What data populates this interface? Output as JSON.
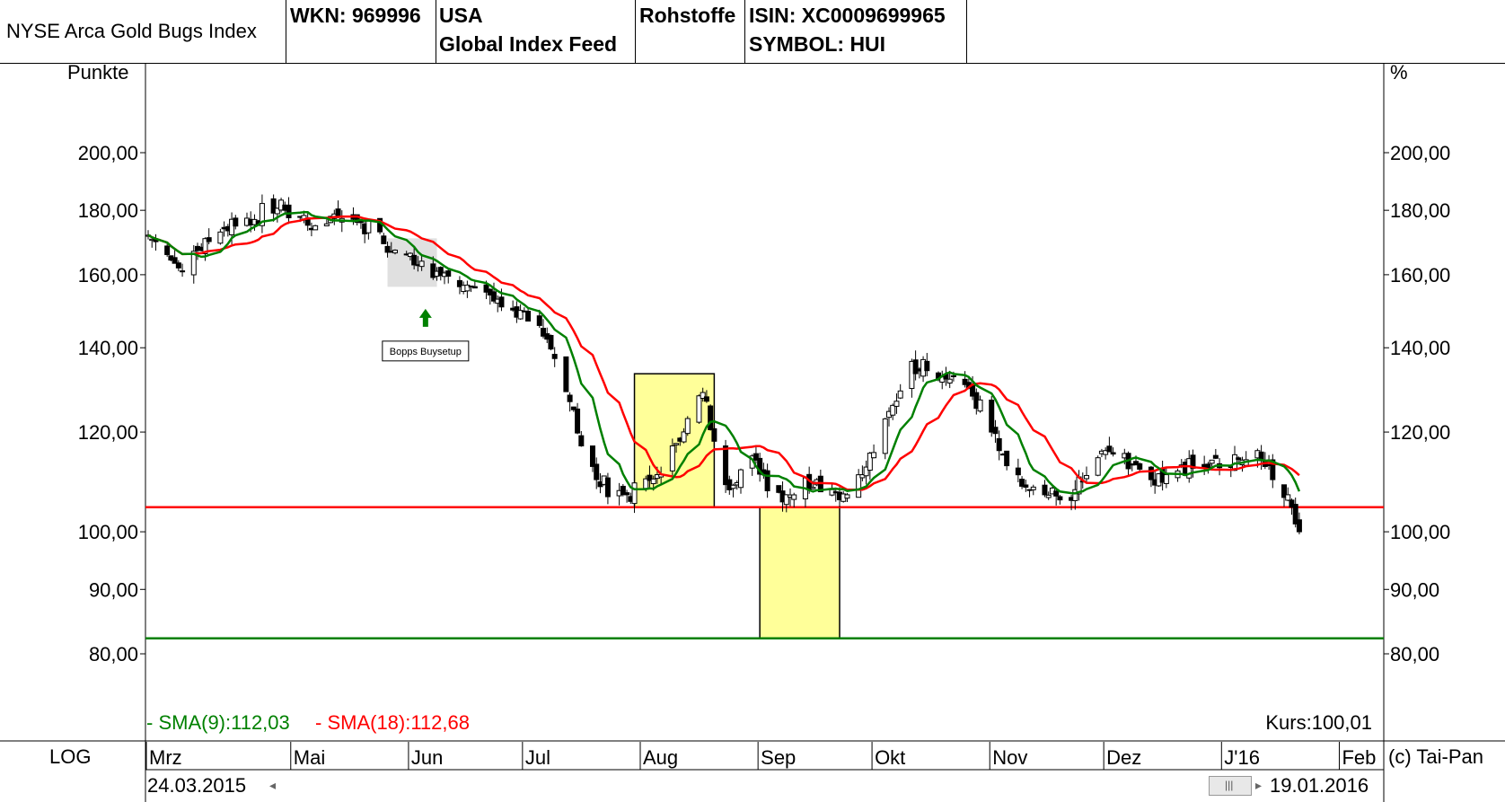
{
  "header": {
    "name": "NYSE Arca Gold Bugs Index",
    "wkn": "WKN: 969996",
    "country": "USA",
    "feed": "Global Index Feed",
    "category": "Rohstoffe",
    "isin": "ISIN: XC0009699965",
    "symbol": "SYMBOL: HUI"
  },
  "footer": {
    "scale_mode": "LOG",
    "copyright": "(c) Tai-Pan",
    "start_date": "24.03.2015",
    "end_date": "19.01.2016"
  },
  "chart_data": {
    "type": "candlestick",
    "left_axis_label": "Punkte",
    "right_axis_label": "%",
    "y_scale": "log",
    "ylim": [
      78,
      250
    ],
    "y_ticks": [
      80,
      90,
      100,
      120,
      140,
      160,
      180,
      200
    ],
    "y_tick_labels": [
      "80,00",
      "90,00",
      "100,00",
      "120,00",
      "140,00",
      "160,00",
      "180,00",
      "200,00"
    ],
    "x_months": [
      "Mrz",
      "Mai",
      "Jun",
      "Jul",
      "Aug",
      "Sep",
      "Okt",
      "Nov",
      "Dez",
      "J'16",
      "Feb"
    ],
    "x_month_days": [
      0,
      38,
      69,
      99,
      130,
      161,
      191,
      222,
      252,
      283,
      314
    ],
    "x_range_days": [
      0,
      325
    ],
    "sma9_label": "- SMA(9):112,03",
    "sma18_label": "- SMA(18):112,68",
    "kurs_label": "Kurs:100,01",
    "horizontal_lines": [
      {
        "value": 104.6,
        "color": "#ff0000"
      },
      {
        "value": 82.3,
        "color": "#008000"
      }
    ],
    "annotation": {
      "text": "Bopps Buysetup",
      "day": 73,
      "value": 145
    },
    "arrow_day": 73,
    "highlight_boxes": [
      {
        "from_day": 128,
        "to_day": 149,
        "low": 104.6,
        "high": 133.5,
        "color": "#ffff99"
      },
      {
        "from_day": 161,
        "to_day": 182,
        "low": 82.3,
        "high": 104.6,
        "color": "#ffff99"
      },
      {
        "from_day": 63,
        "to_day": 76,
        "low": 156.5,
        "high": 171,
        "color": "#d8d8d8"
      }
    ],
    "close_anchors": [
      [
        0,
        172
      ],
      [
        5,
        166
      ],
      [
        8,
        162
      ],
      [
        12,
        167
      ],
      [
        16,
        170
      ],
      [
        20,
        174
      ],
      [
        24,
        178
      ],
      [
        28,
        177
      ],
      [
        32,
        182
      ],
      [
        36,
        180
      ],
      [
        40,
        178
      ],
      [
        44,
        175
      ],
      [
        48,
        178
      ],
      [
        52,
        180
      ],
      [
        56,
        176
      ],
      [
        60,
        172
      ],
      [
        64,
        167
      ],
      [
        68,
        166
      ],
      [
        72,
        164
      ],
      [
        76,
        161
      ],
      [
        80,
        158
      ],
      [
        84,
        157
      ],
      [
        88,
        156
      ],
      [
        92,
        153
      ],
      [
        96,
        150
      ],
      [
        100,
        147
      ],
      [
        104,
        143
      ],
      [
        108,
        135
      ],
      [
        112,
        125
      ],
      [
        114,
        117
      ],
      [
        118,
        110
      ],
      [
        122,
        108
      ],
      [
        126,
        107
      ],
      [
        130,
        108
      ],
      [
        134,
        111
      ],
      [
        138,
        117
      ],
      [
        142,
        123
      ],
      [
        146,
        129
      ],
      [
        149,
        118
      ],
      [
        152,
        109
      ],
      [
        156,
        112
      ],
      [
        160,
        114
      ],
      [
        164,
        108
      ],
      [
        168,
        107
      ],
      [
        172,
        109
      ],
      [
        176,
        110
      ],
      [
        180,
        108
      ],
      [
        184,
        107
      ],
      [
        188,
        111
      ],
      [
        192,
        118
      ],
      [
        196,
        126
      ],
      [
        200,
        134
      ],
      [
        204,
        137
      ],
      [
        208,
        132
      ],
      [
        212,
        133
      ],
      [
        216,
        130
      ],
      [
        220,
        124
      ],
      [
        224,
        116
      ],
      [
        228,
        110
      ],
      [
        232,
        108
      ],
      [
        236,
        107
      ],
      [
        240,
        106
      ],
      [
        244,
        108
      ],
      [
        248,
        111
      ],
      [
        252,
        116
      ],
      [
        256,
        115
      ],
      [
        260,
        113
      ],
      [
        264,
        110
      ],
      [
        268,
        111
      ],
      [
        272,
        113
      ],
      [
        276,
        112
      ],
      [
        280,
        114
      ],
      [
        284,
        113
      ],
      [
        288,
        114
      ],
      [
        292,
        116
      ],
      [
        296,
        110
      ],
      [
        300,
        107
      ],
      [
        303,
        100
      ]
    ]
  }
}
